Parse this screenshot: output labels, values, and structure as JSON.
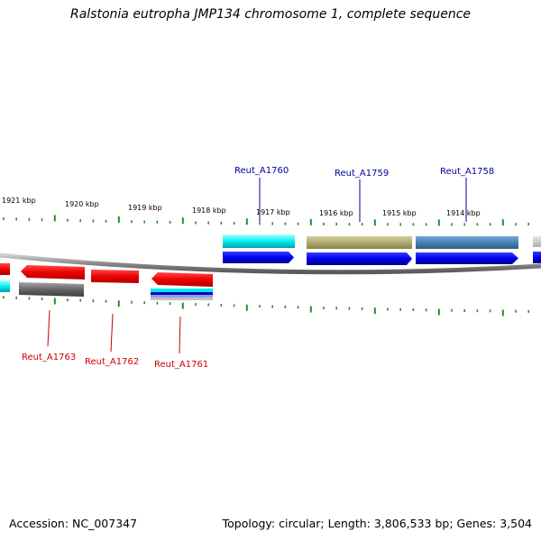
{
  "title": "Ralstonia eutropha JMP134 chromosome 1, complete sequence",
  "footer": {
    "accession": "Accession: NC_007347",
    "topology": "Topology: circular; Length: 3,806,533 bp; Genes: 3,504"
  },
  "kbp_labels": [
    "1921 kbp",
    "1920 kbp",
    "1919 kbp",
    "1918 kbp",
    "1917 kbp",
    "1916 kbp",
    "1915 kbp",
    "1914 kbp"
  ],
  "genes_top": [
    {
      "label": "Reut_A1760",
      "color": "#000099"
    },
    {
      "label": "Reut_A1759",
      "color": "#000099"
    },
    {
      "label": "Reut_A1758",
      "color": "#000099"
    }
  ],
  "genes_bottom": [
    {
      "label": "Reut_A1763",
      "color": "#cc0000"
    },
    {
      "label": "Reut_A1762",
      "color": "#cc0000"
    },
    {
      "label": "Reut_A1761",
      "color": "#cc0000"
    }
  ],
  "colors": {
    "forward": "#0000ee",
    "reverse": "#ee0000",
    "cog_cyan": "#00e5ee",
    "cog_olive": "#b3aa70",
    "cog_steelblue": "#4a82b4",
    "cog_gray": "#777777",
    "tick": "#2a8a2a",
    "backbone": "#999999"
  }
}
